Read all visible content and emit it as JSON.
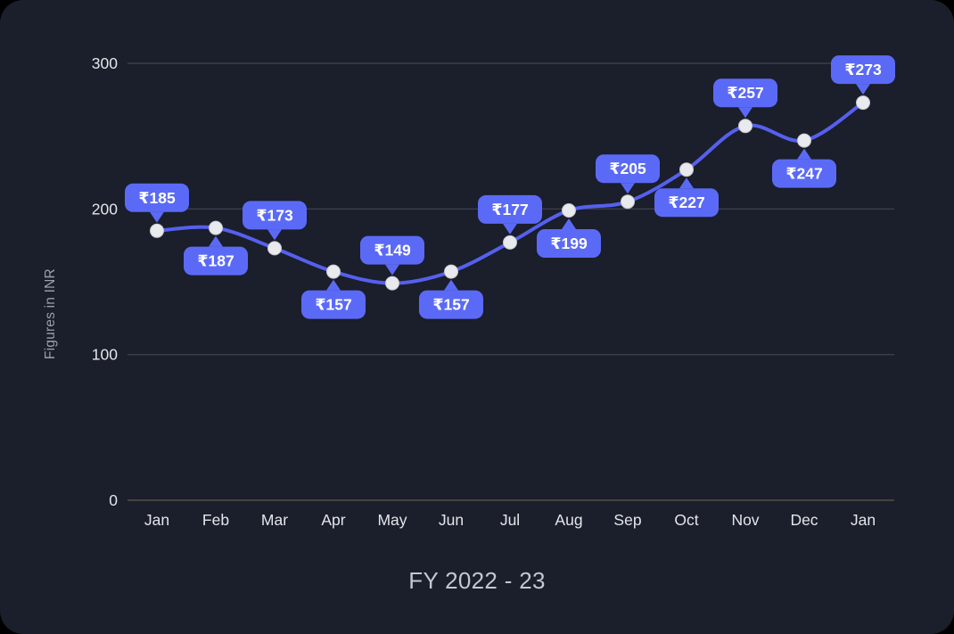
{
  "card": {
    "background": "#1b1e2b",
    "outer_background": "#000000",
    "corner_radius": 26
  },
  "chart_data": {
    "type": "line",
    "title": "FY 2022 - 23",
    "ylabel": "Figures in INR",
    "categories": [
      "Jan",
      "Feb",
      "Mar",
      "Apr",
      "May",
      "Jun",
      "Jul",
      "Aug",
      "Sep",
      "Oct",
      "Nov",
      "Dec",
      "Jan"
    ],
    "series": [
      {
        "name": "Figures in INR",
        "values": [
          185,
          187,
          173,
          157,
          149,
          157,
          177,
          199,
          205,
          227,
          257,
          247,
          273
        ]
      }
    ],
    "point_labels": [
      "₹185",
      "₹187",
      "₹173",
      "₹157",
      "₹149",
      "₹157",
      "₹177",
      "₹199",
      "₹205",
      "₹227",
      "₹257",
      "₹247",
      "₹273"
    ],
    "label_positions": [
      "above",
      "below",
      "above",
      "below",
      "above",
      "below",
      "above",
      "below",
      "above",
      "below",
      "above",
      "below",
      "above"
    ],
    "currency_prefix": "₹",
    "ylim": [
      0,
      300
    ],
    "yticks": [
      0,
      100,
      200,
      300
    ],
    "ytick_labels": [
      "0",
      "100",
      "200",
      "300"
    ],
    "grid": "horizontal",
    "legend": "none",
    "colors": {
      "line": "#5560ee",
      "badge": "#5b6af6",
      "badge_text": "#ffffff",
      "point_fill": "#e9eaee",
      "point_edge": "#c9cacf",
      "gridline": "#3c3f4b",
      "axis_line": "#47443e",
      "tick_text": "#e4e6ea",
      "title_text": "#c3c7cf",
      "ylabel_text": "#9aa0aa"
    }
  }
}
